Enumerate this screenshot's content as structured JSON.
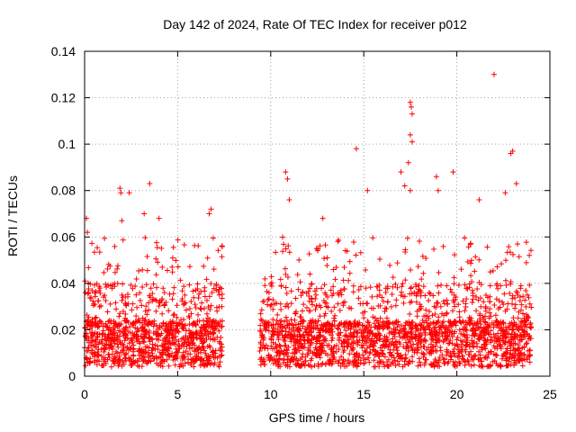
{
  "chart_data": {
    "type": "scatter",
    "title": "Day 142 of 2024, Rate Of TEC Index for receiver p012",
    "xlabel": "GPS time / hours",
    "ylabel": "ROTI / TECUs",
    "xlim": [
      0,
      25
    ],
    "ylim": [
      0,
      0.14
    ],
    "x_ticks": [
      0,
      5,
      10,
      15,
      20,
      25
    ],
    "x_tick_labels": [
      "0",
      "5",
      "10",
      "15",
      "20",
      "25"
    ],
    "y_ticks": [
      0,
      0.02,
      0.04,
      0.06,
      0.08,
      0.1,
      0.12,
      0.14
    ],
    "y_tick_labels": [
      "0",
      "0.02",
      "0.04",
      "0.06",
      "0.08",
      "0.1",
      "0.12",
      "0.14"
    ],
    "grid": true,
    "marker": "+",
    "color": "#ff0000",
    "data_gap_hours": [
      7.4,
      9.4
    ],
    "series": [
      {
        "name": "ROTI",
        "notable_points": [
          {
            "x": 0.1,
            "y": 0.068
          },
          {
            "x": 0.15,
            "y": 0.062
          },
          {
            "x": 0.2,
            "y": 0.04
          },
          {
            "x": 1.9,
            "y": 0.081
          },
          {
            "x": 1.95,
            "y": 0.079
          },
          {
            "x": 2.0,
            "y": 0.067
          },
          {
            "x": 2.4,
            "y": 0.079
          },
          {
            "x": 3.2,
            "y": 0.07
          },
          {
            "x": 3.5,
            "y": 0.083
          },
          {
            "x": 4.0,
            "y": 0.068
          },
          {
            "x": 6.7,
            "y": 0.07
          },
          {
            "x": 6.8,
            "y": 0.072
          },
          {
            "x": 10.8,
            "y": 0.088
          },
          {
            "x": 10.9,
            "y": 0.085
          },
          {
            "x": 11.0,
            "y": 0.076
          },
          {
            "x": 12.8,
            "y": 0.068
          },
          {
            "x": 14.6,
            "y": 0.098
          },
          {
            "x": 15.2,
            "y": 0.08
          },
          {
            "x": 17.0,
            "y": 0.088
          },
          {
            "x": 17.2,
            "y": 0.082
          },
          {
            "x": 17.4,
            "y": 0.092
          },
          {
            "x": 17.5,
            "y": 0.118
          },
          {
            "x": 17.55,
            "y": 0.116
          },
          {
            "x": 17.6,
            "y": 0.113
          },
          {
            "x": 17.5,
            "y": 0.104
          },
          {
            "x": 17.6,
            "y": 0.101
          },
          {
            "x": 17.5,
            "y": 0.08
          },
          {
            "x": 18.9,
            "y": 0.086
          },
          {
            "x": 19.0,
            "y": 0.08
          },
          {
            "x": 19.8,
            "y": 0.088
          },
          {
            "x": 21.2,
            "y": 0.076
          },
          {
            "x": 22.0,
            "y": 0.13
          },
          {
            "x": 22.9,
            "y": 0.096
          },
          {
            "x": 23.0,
            "y": 0.097
          },
          {
            "x": 23.2,
            "y": 0.083
          },
          {
            "x": 22.6,
            "y": 0.079
          }
        ]
      }
    ]
  }
}
